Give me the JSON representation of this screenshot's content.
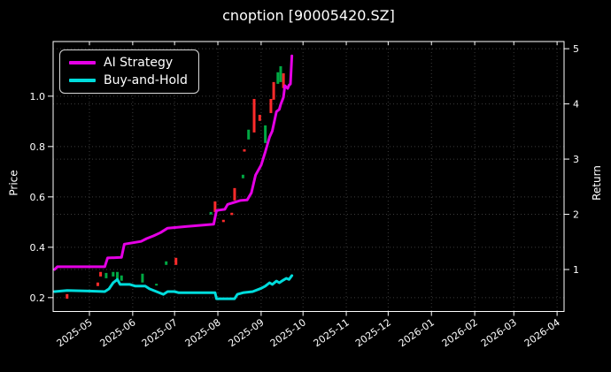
{
  "title": "cnoption [90005420.SZ]",
  "colors": {
    "background": "#000000",
    "text": "#ffffff",
    "grid": "#3c3c3c",
    "spine": "#ffffff",
    "ai_strategy": "#e500e5",
    "buy_and_hold": "#00dcdc",
    "candle_up": "#00a843",
    "candle_down": "#ff2b2b"
  },
  "legend": {
    "items": [
      {
        "label": "AI Strategy",
        "color": "#e500e5"
      },
      {
        "label": "Buy-and-Hold",
        "color": "#00dcdc"
      }
    ]
  },
  "axes": {
    "left": {
      "label": "Price",
      "ticks": [
        "0.2",
        "0.4",
        "0.6",
        "0.8",
        "1.0"
      ],
      "tick_values": [
        0.2,
        0.4,
        0.6,
        0.8,
        1.0
      ],
      "range": [
        0.145,
        1.217
      ]
    },
    "right": {
      "label": "Return",
      "ticks": [
        "1",
        "2",
        "3",
        "4",
        "5"
      ],
      "tick_values": [
        1,
        2,
        3,
        4,
        5
      ],
      "range": [
        0.24,
        5.13
      ]
    },
    "x": {
      "tick_labels": [
        "2025-05",
        "2025-06",
        "2025-07",
        "2025-08",
        "2025-09",
        "2025-10",
        "2025-11",
        "2025-12",
        "2026-01",
        "2026-02",
        "2026-03",
        "2026-04"
      ],
      "range": [
        "2025-04-05",
        "2026-04-06"
      ]
    }
  },
  "chart_data": {
    "type": "candlestick+line",
    "title": "cnoption [90005420.SZ]",
    "xlabel": "",
    "ylabel_left": "Price",
    "ylabel_right": "Return",
    "grid": true,
    "legend_position": "upper-left",
    "series": [
      {
        "name": "AI Strategy",
        "axis": "return",
        "color": "#e500e5",
        "points": [
          [
            "2025-04-06",
            1.0
          ],
          [
            "2025-04-08",
            1.05
          ],
          [
            "2025-05-12",
            1.05
          ],
          [
            "2025-05-14",
            1.21
          ],
          [
            "2025-05-24",
            1.22
          ],
          [
            "2025-05-26",
            1.46
          ],
          [
            "2025-06-07",
            1.51
          ],
          [
            "2025-06-11",
            1.56
          ],
          [
            "2025-06-16",
            1.61
          ],
          [
            "2025-06-21",
            1.67
          ],
          [
            "2025-06-26",
            1.75
          ],
          [
            "2025-07-10",
            1.78
          ],
          [
            "2025-07-29",
            1.82
          ],
          [
            "2025-07-31",
            2.07
          ],
          [
            "2025-08-06",
            2.09
          ],
          [
            "2025-08-08",
            2.18
          ],
          [
            "2025-08-17",
            2.25
          ],
          [
            "2025-08-22",
            2.26
          ],
          [
            "2025-08-25",
            2.39
          ],
          [
            "2025-08-28",
            2.71
          ],
          [
            "2025-09-01",
            2.89
          ],
          [
            "2025-09-04",
            3.13
          ],
          [
            "2025-09-07",
            3.4
          ],
          [
            "2025-09-09",
            3.51
          ],
          [
            "2025-09-12",
            3.86
          ],
          [
            "2025-09-14",
            3.9
          ],
          [
            "2025-09-15",
            3.99
          ],
          [
            "2025-09-17",
            4.12
          ],
          [
            "2025-09-18",
            4.33
          ],
          [
            "2025-09-20",
            4.28
          ],
          [
            "2025-09-21",
            4.34
          ],
          [
            "2025-09-22",
            4.36
          ],
          [
            "2025-09-23",
            4.87
          ]
        ]
      },
      {
        "name": "Buy-and-Hold",
        "axis": "return",
        "color": "#00dcdc",
        "points": [
          [
            "2025-04-06",
            0.6
          ],
          [
            "2025-04-15",
            0.62
          ],
          [
            "2025-05-01",
            0.61
          ],
          [
            "2025-05-12",
            0.6
          ],
          [
            "2025-05-15",
            0.65
          ],
          [
            "2025-05-18",
            0.76
          ],
          [
            "2025-05-21",
            0.82
          ],
          [
            "2025-05-23",
            0.73
          ],
          [
            "2025-05-30",
            0.73
          ],
          [
            "2025-06-03",
            0.7
          ],
          [
            "2025-06-10",
            0.7
          ],
          [
            "2025-06-13",
            0.65
          ],
          [
            "2025-06-23",
            0.55
          ],
          [
            "2025-06-26",
            0.6
          ],
          [
            "2025-07-01",
            0.6
          ],
          [
            "2025-07-04",
            0.58
          ],
          [
            "2025-07-30",
            0.58
          ],
          [
            "2025-07-31",
            0.47
          ],
          [
            "2025-08-13",
            0.47
          ],
          [
            "2025-08-15",
            0.55
          ],
          [
            "2025-08-19",
            0.58
          ],
          [
            "2025-08-26",
            0.6
          ],
          [
            "2025-09-01",
            0.66
          ],
          [
            "2025-09-04",
            0.7
          ],
          [
            "2025-09-07",
            0.76
          ],
          [
            "2025-09-09",
            0.73
          ],
          [
            "2025-09-12",
            0.79
          ],
          [
            "2025-09-14",
            0.76
          ],
          [
            "2025-09-17",
            0.81
          ],
          [
            "2025-09-19",
            0.84
          ],
          [
            "2025-09-21",
            0.82
          ],
          [
            "2025-09-23",
            0.89
          ]
        ]
      }
    ],
    "candles": [
      {
        "date": "2025-04-15",
        "dir": "down",
        "top": 0.214,
        "bottom": 0.196
      },
      {
        "date": "2025-05-07",
        "dir": "down",
        "top": 0.26,
        "bottom": 0.246
      },
      {
        "date": "2025-05-09",
        "dir": "down",
        "top": 0.302,
        "bottom": 0.284
      },
      {
        "date": "2025-05-13",
        "dir": "up",
        "top": 0.298,
        "bottom": 0.277
      },
      {
        "date": "2025-05-18",
        "dir": "up",
        "top": 0.302,
        "bottom": 0.284
      },
      {
        "date": "2025-05-21",
        "dir": "up",
        "top": 0.302,
        "bottom": 0.27
      },
      {
        "date": "2025-05-24",
        "dir": "up",
        "top": 0.288,
        "bottom": 0.267
      },
      {
        "date": "2025-06-08",
        "dir": "up",
        "top": 0.295,
        "bottom": 0.26
      },
      {
        "date": "2025-06-18",
        "dir": "up",
        "top": 0.255,
        "bottom": 0.249
      },
      {
        "date": "2025-06-25",
        "dir": "up",
        "top": 0.344,
        "bottom": 0.33
      },
      {
        "date": "2025-07-02",
        "dir": "down",
        "top": 0.358,
        "bottom": 0.33
      },
      {
        "date": "2025-07-27",
        "dir": "up",
        "top": 0.54,
        "bottom": 0.53
      },
      {
        "date": "2025-07-30",
        "dir": "down",
        "top": 0.582,
        "bottom": 0.54
      },
      {
        "date": "2025-08-05",
        "dir": "down",
        "top": 0.509,
        "bottom": 0.5
      },
      {
        "date": "2025-08-11",
        "dir": "down",
        "top": 0.537,
        "bottom": 0.528
      },
      {
        "date": "2025-08-13",
        "dir": "down",
        "top": 0.635,
        "bottom": 0.586
      },
      {
        "date": "2025-08-19",
        "dir": "up",
        "top": 0.688,
        "bottom": 0.674
      },
      {
        "date": "2025-08-20",
        "dir": "down",
        "top": 0.789,
        "bottom": 0.78
      },
      {
        "date": "2025-08-23",
        "dir": "up",
        "top": 0.867,
        "bottom": 0.828
      },
      {
        "date": "2025-08-27",
        "dir": "down",
        "top": 0.989,
        "bottom": 0.856
      },
      {
        "date": "2025-08-31",
        "dir": "down",
        "top": 0.926,
        "bottom": 0.902
      },
      {
        "date": "2025-09-04",
        "dir": "up",
        "top": 0.884,
        "bottom": 0.814
      },
      {
        "date": "2025-09-08",
        "dir": "down",
        "top": 0.989,
        "bottom": 0.933
      },
      {
        "date": "2025-09-10",
        "dir": "down",
        "top": 1.056,
        "bottom": 0.986
      },
      {
        "date": "2025-09-13",
        "dir": "up",
        "top": 1.095,
        "bottom": 1.049
      },
      {
        "date": "2025-09-15",
        "dir": "up",
        "top": 1.119,
        "bottom": 1.056
      },
      {
        "date": "2025-09-17",
        "dir": "down",
        "top": 1.091,
        "bottom": 1.032
      }
    ]
  }
}
